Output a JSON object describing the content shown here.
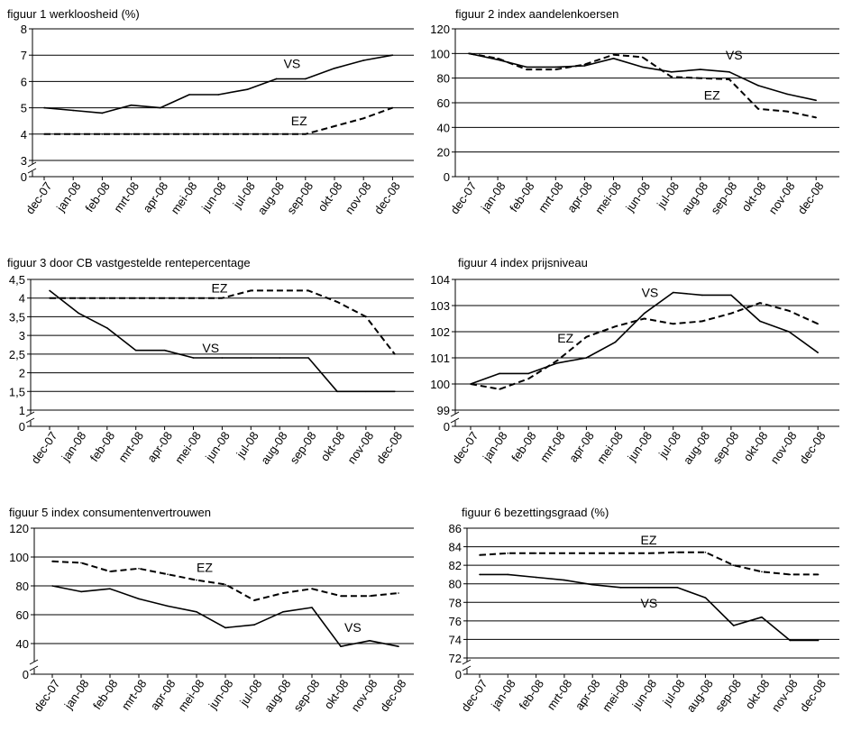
{
  "chart_data": [
    {
      "type": "line",
      "title": "figuur 1 werkloosheid (%)",
      "categories": [
        "dec-07",
        "jan-08",
        "feb-08",
        "mrt-08",
        "apr-08",
        "mei-08",
        "jun-08",
        "jul-08",
        "aug-08",
        "sep-08",
        "okt-08",
        "nov-08",
        "dec-08"
      ],
      "yticks": [
        "0",
        "3",
        "4",
        "5",
        "6",
        "7",
        "8"
      ],
      "ylim": [
        3,
        8
      ],
      "axis_break": true,
      "grid": true,
      "series": [
        {
          "name": "VS",
          "style": "solid",
          "values": [
            5.0,
            4.9,
            4.8,
            5.1,
            5.0,
            5.5,
            5.5,
            5.7,
            6.1,
            6.1,
            6.5,
            6.8,
            7.0
          ]
        },
        {
          "name": "EZ",
          "style": "dashed",
          "values": [
            4.0,
            4.0,
            4.0,
            4.0,
            4.0,
            4.0,
            4.0,
            4.0,
            4.0,
            4.0,
            4.3,
            4.6,
            5.0
          ]
        }
      ]
    },
    {
      "type": "line",
      "title": "figuur 2 index aandelenkoersen",
      "categories": [
        "dec-07",
        "jan-08",
        "feb-08",
        "mrt-08",
        "apr-08",
        "mei-08",
        "jun-08",
        "jul-08",
        "aug-08",
        "sep-08",
        "okt-08",
        "nov-08",
        "dec-08"
      ],
      "yticks": [
        "0",
        "20",
        "40",
        "60",
        "80",
        "100",
        "120"
      ],
      "ylim": [
        0,
        120
      ],
      "axis_break": false,
      "grid": true,
      "series": [
        {
          "name": "VS",
          "style": "solid",
          "values": [
            100,
            95,
            89,
            89,
            90,
            96,
            89,
            85,
            87,
            85,
            74,
            67,
            62
          ]
        },
        {
          "name": "EZ",
          "style": "dashed",
          "values": [
            100,
            96,
            87,
            87,
            91,
            99,
            97,
            81,
            80,
            79,
            55,
            53,
            48
          ]
        }
      ]
    },
    {
      "type": "line",
      "title": "figuur 3 door CB vastgestelde rentepercentage",
      "categories": [
        "dec-07",
        "jan-08",
        "feb-08",
        "mrt-08",
        "apr-08",
        "mei-08",
        "jun-08",
        "jul-08",
        "aug-08",
        "sep-08",
        "okt-08",
        "nov-08",
        "dec-08"
      ],
      "yticks": [
        "0",
        "1",
        "1,5",
        "2",
        "2,5",
        "3",
        "3,5",
        "4",
        "4,5"
      ],
      "ylim": [
        1,
        4.5
      ],
      "axis_break": true,
      "grid": true,
      "series": [
        {
          "name": "VS",
          "style": "solid",
          "values": [
            4.2,
            3.6,
            3.2,
            2.6,
            2.6,
            2.4,
            2.4,
            2.4,
            2.4,
            2.4,
            1.5,
            1.5,
            1.5
          ]
        },
        {
          "name": "EZ",
          "style": "dashed",
          "values": [
            4.0,
            4.0,
            4.0,
            4.0,
            4.0,
            4.0,
            4.0,
            4.2,
            4.2,
            4.2,
            3.9,
            3.5,
            2.5
          ]
        }
      ]
    },
    {
      "type": "line",
      "title": "figuur 4 index prijsniveau",
      "categories": [
        "dec-07",
        "jan-08",
        "feb-08",
        "mrt-08",
        "apr-08",
        "mei-08",
        "jun-08",
        "jul-08",
        "aug-08",
        "sep-08",
        "okt-08",
        "nov-08",
        "dec-08"
      ],
      "yticks": [
        "0",
        "99",
        "100",
        "101",
        "102",
        "103",
        "104"
      ],
      "ylim": [
        99,
        104
      ],
      "axis_break": true,
      "grid": true,
      "series": [
        {
          "name": "VS",
          "style": "solid",
          "values": [
            100,
            100.4,
            100.4,
            100.8,
            101.0,
            101.6,
            102.7,
            103.5,
            103.4,
            103.4,
            102.4,
            102.0,
            101.2
          ]
        },
        {
          "name": "EZ",
          "style": "dashed",
          "values": [
            100,
            99.8,
            100.2,
            100.9,
            101.8,
            102.2,
            102.5,
            102.3,
            102.4,
            102.7,
            103.1,
            102.8,
            102.3
          ]
        }
      ]
    },
    {
      "type": "line",
      "title": "figuur 5 index consumentenvertrouwen",
      "categories": [
        "dec-07",
        "jan-08",
        "feb-08",
        "mrt-08",
        "apr-08",
        "mei-08",
        "jun-08",
        "jul-08",
        "aug-08",
        "sep-08",
        "okt-08",
        "nov-08",
        "dec-08"
      ],
      "yticks": [
        "0",
        "40",
        "60",
        "80",
        "100",
        "120"
      ],
      "ylim": [
        30,
        120
      ],
      "axis_break": true,
      "grid": true,
      "series": [
        {
          "name": "VS",
          "style": "solid",
          "values": [
            80,
            76,
            78,
            71,
            66,
            62,
            51,
            53,
            62,
            65,
            38,
            42,
            38
          ]
        },
        {
          "name": "EZ",
          "style": "dashed",
          "values": [
            97,
            96,
            90,
            92,
            88,
            84,
            81,
            70,
            75,
            78,
            73,
            73,
            75
          ]
        }
      ]
    },
    {
      "type": "line",
      "title": "figuur 6 bezettingsgraad (%)",
      "categories": [
        "dec-07",
        "jan-08",
        "feb-08",
        "mrt-08",
        "apr-08",
        "mei-08",
        "jun-08",
        "jul-08",
        "aug-08",
        "sep-08",
        "okt-08",
        "nov-08",
        "dec-08"
      ],
      "yticks": [
        "0",
        "72",
        "74",
        "76",
        "78",
        "80",
        "82",
        "84",
        "86"
      ],
      "ylim": [
        72,
        86
      ],
      "axis_break": true,
      "grid": true,
      "series": [
        {
          "name": "VS",
          "style": "solid",
          "values": [
            81.0,
            81.0,
            80.7,
            80.4,
            79.9,
            79.6,
            79.6,
            79.6,
            78.5,
            75.5,
            76.4,
            73.9,
            73.9
          ]
        },
        {
          "name": "EZ",
          "style": "dashed",
          "values": [
            83.1,
            83.3,
            83.3,
            83.3,
            83.3,
            83.3,
            83.3,
            83.4,
            83.4,
            82.0,
            81.3,
            81.0,
            81.0
          ]
        }
      ]
    }
  ]
}
